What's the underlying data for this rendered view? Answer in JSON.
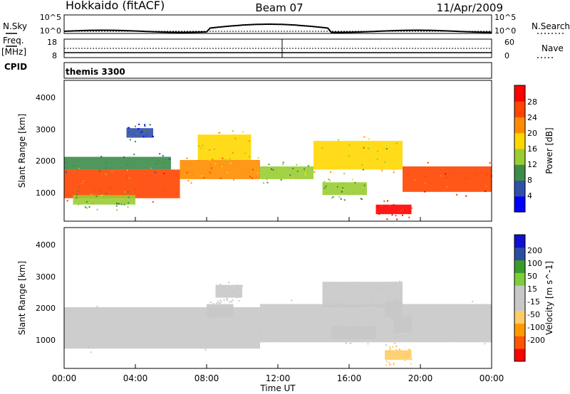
{
  "header": {
    "station": "Hokkaido (fitACF)",
    "beam": "Beam 07",
    "date": "11/Apr/2009"
  },
  "sky_panel": {
    "left_label": "N.Sky",
    "right_label": "N.Search",
    "ticks": [
      "10^5",
      "10^0"
    ]
  },
  "freq_panel": {
    "left_label": "Freq.",
    "unit": "[MHz]",
    "left_ticks": [
      "18",
      "8"
    ],
    "right_ticks": [
      "60",
      "0"
    ],
    "right_label": "Nave",
    "cpid_label": "CPID"
  },
  "cpid_text": "themis 3300",
  "colors": {
    "power_scale": [
      "#0000ff",
      "#2f4fa8",
      "#3c8c4a",
      "#9acd32",
      "#ffd700",
      "#ff8c00",
      "#ff4500",
      "#ff0000"
    ],
    "velocity_scale": [
      "#ff0000",
      "#ff5500",
      "#ff9a00",
      "#ffcc66",
      "#c8c8c8",
      "#c8c8c8",
      "#7dce3c",
      "#3a9b2a",
      "#2b4fa0",
      "#1010d0"
    ]
  },
  "chart_data": [
    {
      "type": "heatmap",
      "ylabel": "Slant Range [km]",
      "yticks": [
        "1000",
        "2000",
        "3000",
        "4000"
      ],
      "ylim": [
        180,
        4600
      ],
      "xlim": [
        0,
        24
      ],
      "colorbar": {
        "label": "Power [dB]",
        "ticks": [
          "4",
          "8",
          "12",
          "16",
          "20",
          "24",
          "28"
        ],
        "range": [
          0,
          32
        ]
      },
      "regions": [
        {
          "t0": 0.0,
          "t1": 6.5,
          "r0": 900,
          "r1": 1800,
          "v": 24
        },
        {
          "t0": 0.5,
          "t1": 4.0,
          "r0": 700,
          "r1": 1000,
          "v": 12
        },
        {
          "t0": 0.0,
          "t1": 6.0,
          "r0": 1800,
          "r1": 2200,
          "v": 10
        },
        {
          "t0": 6.5,
          "t1": 11.0,
          "r0": 1500,
          "r1": 2100,
          "v": 22
        },
        {
          "t0": 7.5,
          "t1": 10.5,
          "r0": 2100,
          "r1": 2900,
          "v": 18
        },
        {
          "t0": 11.0,
          "t1": 14.0,
          "r0": 1500,
          "r1": 1900,
          "v": 12
        },
        {
          "t0": 14.0,
          "t1": 19.0,
          "r0": 1800,
          "r1": 2700,
          "v": 16
        },
        {
          "t0": 14.5,
          "t1": 17.0,
          "r0": 1000,
          "r1": 1400,
          "v": 12
        },
        {
          "t0": 19.0,
          "t1": 24.0,
          "r0": 1100,
          "r1": 1900,
          "v": 24
        },
        {
          "t0": 17.5,
          "t1": 19.5,
          "r0": 400,
          "r1": 700,
          "v": 28
        },
        {
          "t0": 3.5,
          "t1": 5.0,
          "r0": 2800,
          "r1": 3100,
          "v": 6
        }
      ]
    },
    {
      "type": "heatmap",
      "ylabel": "Slant Range [km]",
      "yticks": [
        "1000",
        "2000",
        "3000",
        "4000"
      ],
      "ylim": [
        180,
        4600
      ],
      "xlim": [
        0,
        24
      ],
      "xlabel": "Time UT",
      "xticks": [
        "00:00",
        "04:00",
        "08:00",
        "12:00",
        "16:00",
        "20:00",
        "00:00"
      ],
      "colorbar": {
        "label": "Velocity [m s^-1]",
        "ticks": [
          "200",
          "100",
          "50",
          "15",
          "-15",
          "-50",
          "-100",
          "-200"
        ],
        "range": [
          -250,
          250
        ]
      },
      "regions": [
        {
          "t0": 0.0,
          "t1": 11.0,
          "r0": 800,
          "r1": 2100,
          "v": 0
        },
        {
          "t0": 11.0,
          "t1": 24.0,
          "r0": 1000,
          "r1": 2200,
          "v": 0
        },
        {
          "t0": 14.5,
          "t1": 19.0,
          "r0": 2100,
          "r1": 2900,
          "v": 0
        },
        {
          "t0": 8.5,
          "t1": 10.0,
          "r0": 2400,
          "r1": 2800,
          "v": 40
        },
        {
          "t0": 8.0,
          "t1": 9.5,
          "r0": 1800,
          "r1": 2200,
          "v": -45
        },
        {
          "t0": 15.0,
          "t1": 17.5,
          "r0": 1100,
          "r1": 1500,
          "v": 45
        },
        {
          "t0": 18.0,
          "t1": 19.5,
          "r0": 450,
          "r1": 750,
          "v": -60
        },
        {
          "t0": 18.5,
          "t1": 19.5,
          "r0": 1300,
          "r1": 1800,
          "v": -40
        },
        {
          "t0": 18.0,
          "t1": 19.0,
          "r0": 1800,
          "r1": 2300,
          "v": 40
        }
      ]
    }
  ]
}
